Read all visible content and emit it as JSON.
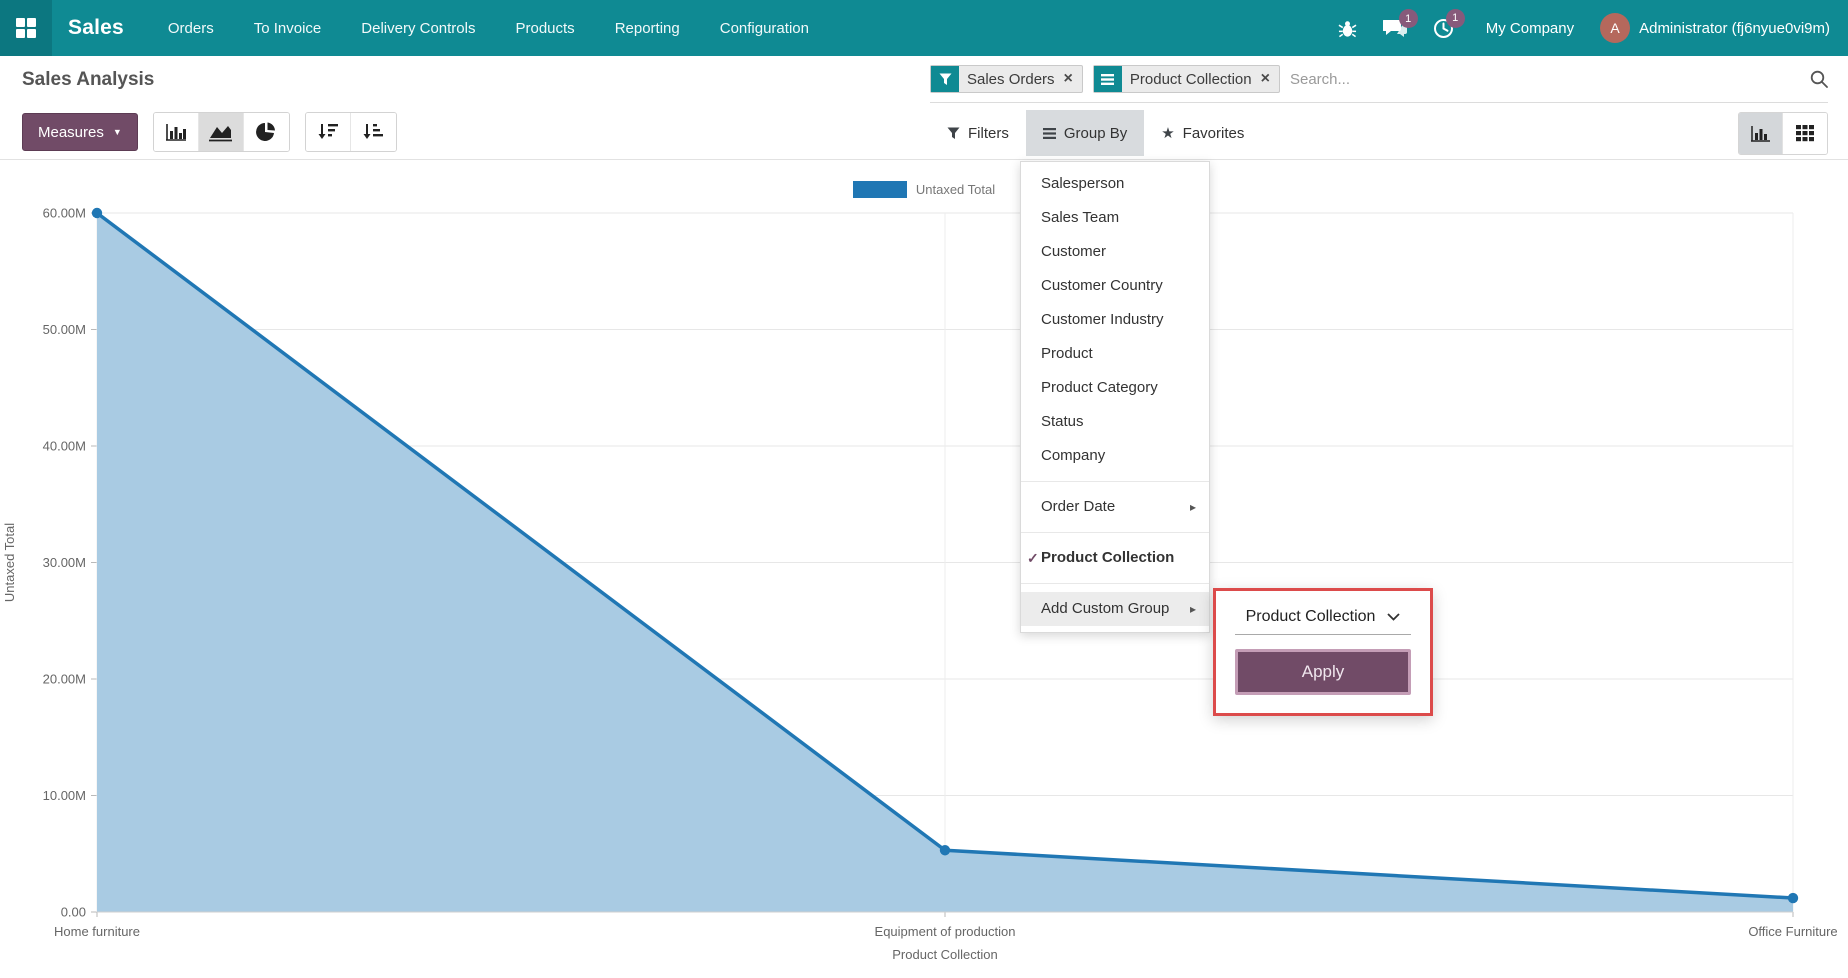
{
  "colors": {
    "teal": "#0f8a93",
    "teal_dark": "#0c7780",
    "purple": "#714b67",
    "purple_light_border": "#c49db6",
    "badge_purple": "#875a7b",
    "avatar_bg": "#b5685c",
    "danger_red": "#dc4b4b",
    "line_blue": "#2077b4",
    "area_fill": "#a9cbe3",
    "facet_bg": "#ebebeb"
  },
  "nav": {
    "brand": "Sales",
    "items": [
      "Orders",
      "To Invoice",
      "Delivery Controls",
      "Products",
      "Reporting",
      "Configuration"
    ],
    "messages_badge": "1",
    "activities_badge": "1",
    "company": "My Company",
    "avatar_letter": "A",
    "user": "Administrator (fj6nyue0vi9m)"
  },
  "control_panel": {
    "title": "Sales Analysis",
    "measures_label": "Measures",
    "search": {
      "facets": [
        {
          "icon": "filter-icon",
          "label": "Sales Orders"
        },
        {
          "icon": "group-by-icon",
          "label": "Product Collection"
        }
      ],
      "placeholder": "Search...",
      "remove_glyph": "×"
    },
    "filters_label": "Filters",
    "group_by_label": "Group By",
    "favorites_label": "Favorites"
  },
  "group_by_menu": {
    "items": [
      "Salesperson",
      "Sales Team",
      "Customer",
      "Customer Country",
      "Customer Industry",
      "Product",
      "Product Category",
      "Status",
      "Company"
    ],
    "order_date_label": "Order Date",
    "selected_label": "Product Collection",
    "selected_check": "✓",
    "add_custom_label": "Add Custom Group",
    "submenu_arrow": "▸"
  },
  "custom_group_popover": {
    "field_value": "Product Collection",
    "apply_label": "Apply"
  },
  "chart_data": {
    "type": "area",
    "categories": [
      "Home furniture",
      "Equipment of production",
      "Office Furniture"
    ],
    "series": [
      {
        "name": "Untaxed Total",
        "values": [
          60000000,
          5300000,
          1200000
        ]
      }
    ],
    "xlabel": "Product Collection",
    "ylabel": "Untaxed Total",
    "ylim": [
      0,
      60000000
    ],
    "yticks": [
      "0.00",
      "10.00M",
      "20.00M",
      "30.00M",
      "40.00M",
      "50.00M",
      "60.00M"
    ],
    "grid": true,
    "legend_position": "top"
  }
}
